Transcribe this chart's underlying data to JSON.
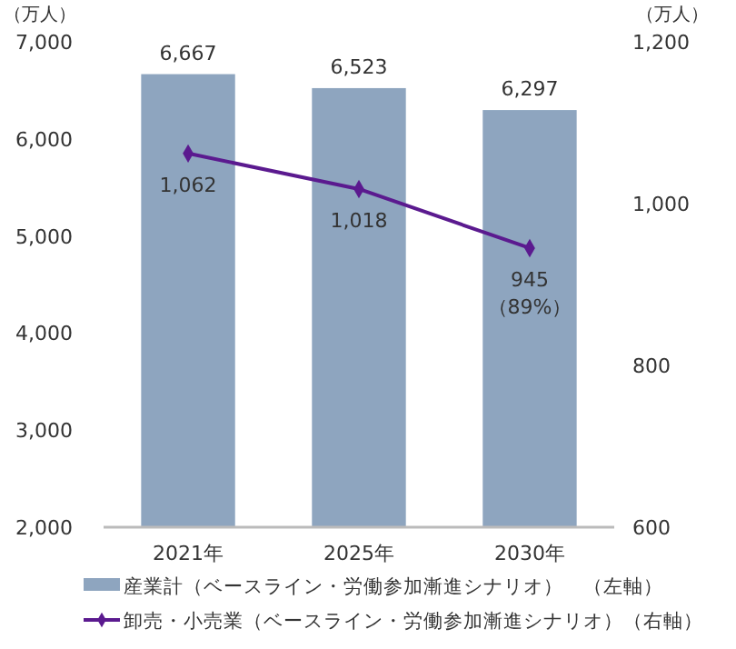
{
  "chart_data": {
    "type": "bar",
    "ylabel": "（万人）",
    "y2label": "（万人）",
    "categories": [
      "2021年",
      "2025年",
      "2030年"
    ],
    "series": [
      {
        "name": "産業計（ベースライン・労働参加漸進シナリオ）　（左軸）",
        "type": "bar",
        "color": "#8ea5bf",
        "values": [
          6667,
          6523,
          6297
        ],
        "value_labels": [
          "6,667",
          "6,523",
          "6,297"
        ]
      },
      {
        "name": "卸売・小売業（ベースライン・労働参加漸進シナリオ）（右軸）",
        "type": "line",
        "axis": "y2",
        "color": "#5b1a8f",
        "marker": "diamond",
        "values": [
          1062,
          1018,
          945
        ],
        "value_labels": [
          "1,062",
          "1,018",
          "945"
        ]
      }
    ],
    "ylim": [
      2000,
      7000
    ],
    "yticks": [
      {
        "value": 2000,
        "label": "2,000"
      },
      {
        "value": 3000,
        "label": "3,000"
      },
      {
        "value": 4000,
        "label": "4,000"
      },
      {
        "value": 5000,
        "label": "5,000"
      },
      {
        "value": 6000,
        "label": "6,000"
      },
      {
        "value": 7000,
        "label": "7,000"
      }
    ],
    "y2lim": [
      600,
      1200
    ],
    "y2ticks": [
      {
        "value": 600,
        "label": "600"
      },
      {
        "value": 800,
        "label": "800"
      },
      {
        "value": 1000,
        "label": "1,000"
      },
      {
        "value": 1200,
        "label": "1,200"
      }
    ],
    "legend": "bottom",
    "grid": false,
    "annotations": [
      "（89%）"
    ]
  }
}
